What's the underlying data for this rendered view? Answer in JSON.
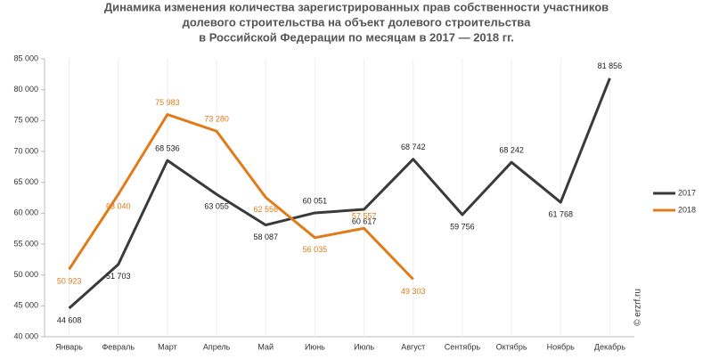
{
  "chart_data": {
    "type": "line",
    "title": [
      "Динамика изменения количества зарегистрированных прав собственности участников",
      "долевого строительства на объект долевого строительства",
      "в Российской Федерации по месяцам в 2017 — 2018 гг."
    ],
    "categories": [
      "Январь",
      "Февраль",
      "Март",
      "Апрель",
      "Май",
      "Июнь",
      "Июль",
      "Август",
      "Сентябрь",
      "Октябрь",
      "Ноябрь",
      "Декабрь"
    ],
    "series": [
      {
        "name": "2017",
        "color": "#3a3a3a",
        "values": [
          44608,
          51703,
          68536,
          63055,
          58087,
          60051,
          60617,
          68742,
          59756,
          68242,
          61768,
          81856
        ],
        "value_labels": [
          "44 608",
          "51 703",
          "68 536",
          "63 055",
          "58 087",
          "60 051",
          "60 617",
          "68 742",
          "59 756",
          "68 242",
          "61 768",
          "81 856"
        ]
      },
      {
        "name": "2018",
        "color": "#e07b1a",
        "values": [
          50923,
          63040,
          75983,
          73280,
          62556,
          56035,
          57557,
          49303,
          null,
          null,
          null,
          null
        ],
        "value_labels": [
          "50 923",
          "63 040",
          "75 983",
          "73 280",
          "62 556",
          "56 035",
          "57 557",
          "49 303",
          null,
          null,
          null,
          null
        ]
      }
    ],
    "ylim": [
      40000,
      85000
    ],
    "yticks": [
      {
        "value": 40000,
        "label": "40 000"
      },
      {
        "value": 45000,
        "label": "45 000"
      },
      {
        "value": 50000,
        "label": "50 000"
      },
      {
        "value": 55000,
        "label": "55 000"
      },
      {
        "value": 60000,
        "label": "60 000"
      },
      {
        "value": 65000,
        "label": "65 000"
      },
      {
        "value": 70000,
        "label": "70 000"
      },
      {
        "value": 75000,
        "label": "75 000"
      },
      {
        "value": 80000,
        "label": "80 000"
      },
      {
        "value": 85000,
        "label": "85 000"
      }
    ],
    "watermark": "© erzrf.ru",
    "legend": "right"
  }
}
